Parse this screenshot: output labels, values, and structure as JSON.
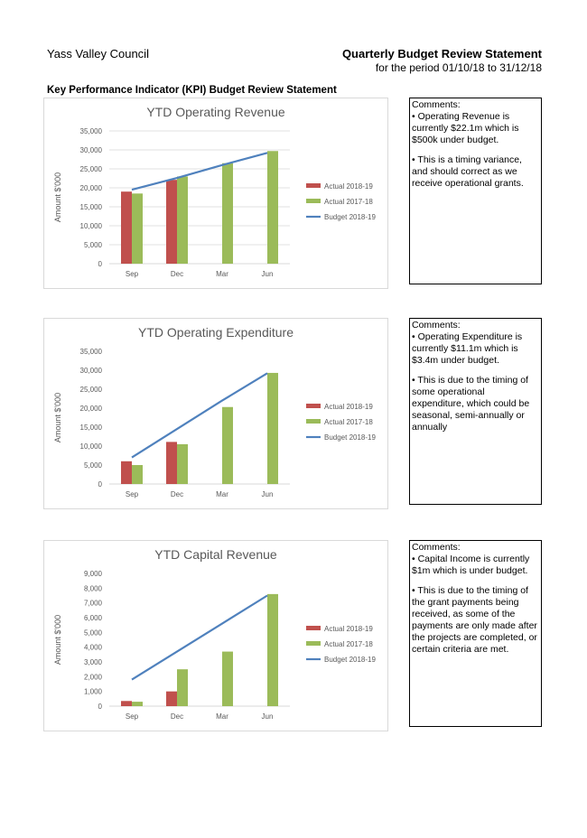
{
  "header": {
    "council": "Yass Valley Council",
    "statement_title": "Quarterly Budget Review Statement",
    "period": "for the period 01/10/18 to 31/12/18",
    "section_title": "Key Performance Indicator (KPI) Budget Review Statement"
  },
  "comments": [
    {
      "heading": "Comments:",
      "points": [
        "• Operating Revenue is currently $22.1m which is $500k under budget.",
        "• This is a timing variance, and should correct as we receive operational grants."
      ]
    },
    {
      "heading": "Comments:",
      "points": [
        "• Operating Expenditure is currently $11.1m which is $3.4m under budget.",
        "• This is due to the timing of some operational expenditure, which could be seasonal, semi-annually or annually"
      ]
    },
    {
      "heading": "Comments:",
      "points": [
        "• Capital Income is currently $1m which is under budget.",
        "• This is due to the timing of the grant payments being received, as some of the payments are only made after the projects are completed, or certain criteria are met."
      ]
    }
  ],
  "colors": {
    "actual_2018_19": "#c0504d",
    "actual_2017_18": "#9bbb59",
    "budget_2018_19": "#4f81bd",
    "axis_text": "#595959",
    "title_text": "#595959",
    "gridline": "#d9d9d9"
  },
  "chart_data": [
    {
      "type": "bar",
      "title": "YTD Operating Revenue",
      "xlabel": "",
      "ylabel": "Amount $'000",
      "categories": [
        "Sep",
        "Dec",
        "Mar",
        "Jun"
      ],
      "ylim": [
        0,
        35000
      ],
      "yticks": [
        "0",
        "5,000",
        "10,000",
        "15,000",
        "20,000",
        "25,000",
        "30,000",
        "35,000"
      ],
      "ytick_values": [
        0,
        5000,
        10000,
        15000,
        20000,
        25000,
        30000,
        35000
      ],
      "grid": true,
      "legend_position": "right",
      "series": [
        {
          "name": "Actual 2018-19",
          "kind": "bar",
          "values": [
            19000,
            22100,
            null,
            null
          ]
        },
        {
          "name": "Actual 2017-18",
          "kind": "bar",
          "values": [
            18500,
            23000,
            26500,
            29700
          ]
        },
        {
          "name": "Budget 2018-19",
          "kind": "line",
          "values": [
            19500,
            22600,
            26000,
            29200
          ]
        }
      ]
    },
    {
      "type": "bar",
      "title": "YTD Operating Expenditure",
      "xlabel": "",
      "ylabel": "Amount $'000",
      "categories": [
        "Sep",
        "Dec",
        "Mar",
        "Jun"
      ],
      "ylim": [
        0,
        35000
      ],
      "yticks": [
        "0",
        "5,000",
        "10,000",
        "15,000",
        "20,000",
        "25,000",
        "30,000",
        "35,000"
      ],
      "ytick_values": [
        0,
        5000,
        10000,
        15000,
        20000,
        25000,
        30000,
        35000
      ],
      "grid": false,
      "legend_position": "right",
      "series": [
        {
          "name": "Actual 2018-19",
          "kind": "bar",
          "values": [
            6000,
            11100,
            null,
            null
          ]
        },
        {
          "name": "Actual 2017-18",
          "kind": "bar",
          "values": [
            5000,
            10500,
            20300,
            29300
          ]
        },
        {
          "name": "Budget 2018-19",
          "kind": "line",
          "values": [
            7000,
            14500,
            22000,
            29200
          ]
        }
      ]
    },
    {
      "type": "bar",
      "title": "YTD Capital Revenue",
      "xlabel": "",
      "ylabel": "Amount $'000",
      "categories": [
        "Sep",
        "Dec",
        "Mar",
        "Jun"
      ],
      "ylim": [
        0,
        9000
      ],
      "yticks": [
        "0",
        "1,000",
        "2,000",
        "3,000",
        "4,000",
        "5,000",
        "6,000",
        "7,000",
        "8,000",
        "9,000"
      ],
      "ytick_values": [
        0,
        1000,
        2000,
        3000,
        4000,
        5000,
        6000,
        7000,
        8000,
        9000
      ],
      "grid": false,
      "legend_position": "right",
      "series": [
        {
          "name": "Actual 2018-19",
          "kind": "bar",
          "values": [
            350,
            1000,
            null,
            null
          ]
        },
        {
          "name": "Actual 2017-18",
          "kind": "bar",
          "values": [
            300,
            2500,
            3700,
            7600
          ]
        },
        {
          "name": "Budget 2018-19",
          "kind": "line",
          "values": [
            1800,
            3700,
            5600,
            7500
          ]
        }
      ]
    }
  ]
}
